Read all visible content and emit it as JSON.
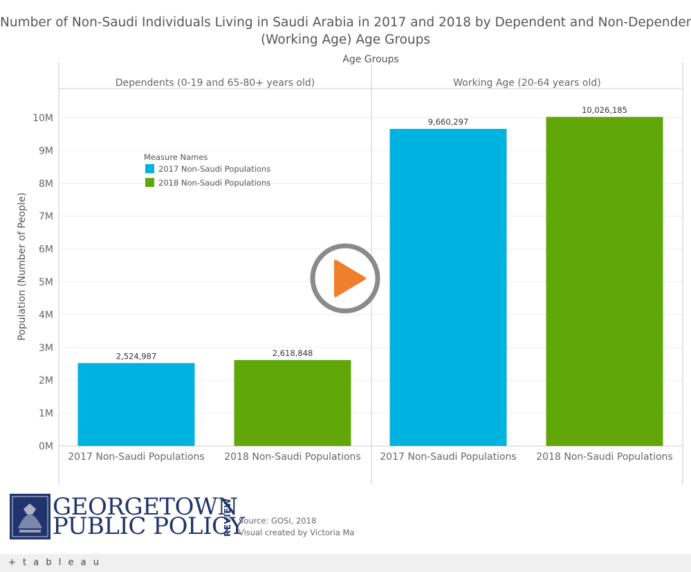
{
  "title_line1": "Number of Non-Saudi Individuals Living in Saudi Arabia in 2017 and 2018 by Dependent and Non-Dependent",
  "title_line2": "(Working Age) Age Groups",
  "legend": {
    "title": "Measure Names",
    "items": [
      {
        "label": "2017 Non-Saudi Populations",
        "color": "#00b2e0"
      },
      {
        "label": "2018 Non-Saudi Populations",
        "color": "#62a70a"
      }
    ]
  },
  "chart_data": {
    "type": "bar",
    "xlabel": "Age Groups",
    "ylabel": "Population (Number of People)",
    "ylim": [
      0,
      10000000
    ],
    "yticks": [
      0,
      1000000,
      2000000,
      3000000,
      4000000,
      5000000,
      6000000,
      7000000,
      8000000,
      9000000,
      10000000
    ],
    "ytick_labels": [
      "0M",
      "1M",
      "2M",
      "3M",
      "4M",
      "5M",
      "6M",
      "7M",
      "8M",
      "9M",
      "10M"
    ],
    "grid": true,
    "legend_position": "top-left",
    "groups": [
      "Dependents (0-19 and 65-80+ years old)",
      "Working Age (20-64 years old)"
    ],
    "categories": [
      "2017 Non-Saudi Populations",
      "2018 Non-Saudi Populations"
    ],
    "series": [
      {
        "name": "2017 Non-Saudi Populations",
        "color": "#00b2e0",
        "values": [
          2524987,
          9660297
        ],
        "labels": [
          "2,524,987",
          "9,660,297"
        ]
      },
      {
        "name": "2018 Non-Saudi Populations",
        "color": "#62a70a",
        "values": [
          2618848,
          10026185
        ],
        "labels": [
          "2,618,848",
          "10,026,185"
        ]
      }
    ]
  },
  "branding": {
    "logo_line1": "GEORGETOWN",
    "logo_line2": "PUBLIC POLICY",
    "logo_side": "REVIEW",
    "source": "Source: GOSI, 2018",
    "credit": "Visual created by Victoria Ma",
    "tableau": "+ t a b l e a u"
  },
  "colors": {
    "accent_play": "#f07f2b",
    "play_ring": "#8a8a8a",
    "axis": "#cccccc",
    "grid": "#eeeeee"
  },
  "icons": {
    "play": "play-icon",
    "seal": "university-seal-icon"
  }
}
